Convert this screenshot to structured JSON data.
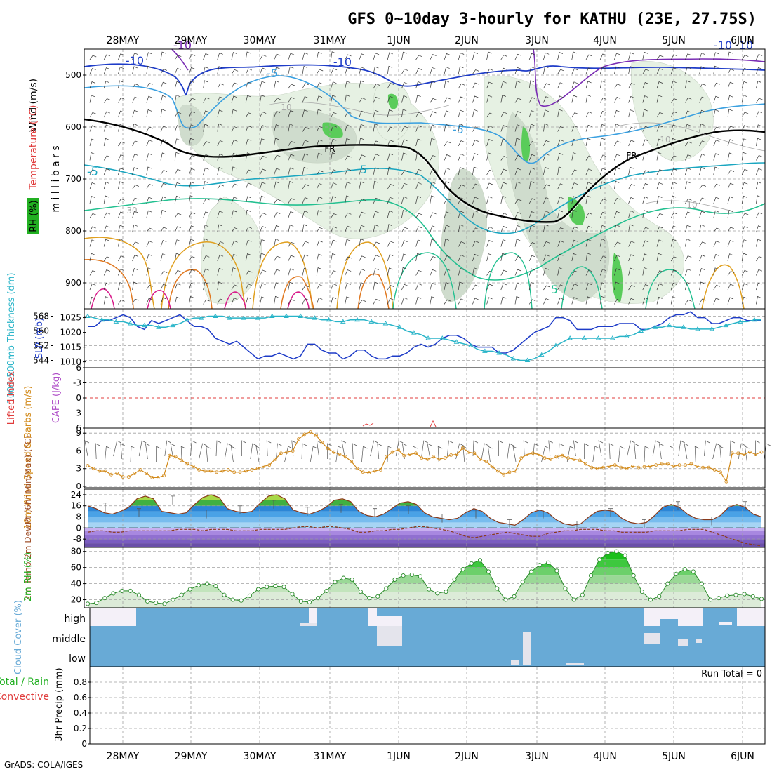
{
  "title": "GFS 0~10day 3-hourly for KATHU (23E, 27.75S)",
  "footer": "GrADS: COLA/IGES",
  "colors": {
    "frame": "#000000",
    "grid": "#a0a0a0",
    "temp_cold": "#7a2db4",
    "wind_label": "#d28a1a",
    "rh_green": "#22b022",
    "slp_blue": "#1e3cc8",
    "thickness_cyan": "#28b4c8",
    "cape_violet": "#b050c8",
    "lifted_red": "#e03c3c",
    "cloud_blue": "#68aad6",
    "cloud_white": "#f4f0f8",
    "precip_green": "#22b022",
    "precip_red": "#e03c3c"
  },
  "chart_data": [
    {
      "panel": "upper-air",
      "type": "contour",
      "ylabel_parts": [
        "RH (%)",
        "Temperature (°C)",
        "Wind (m/s)"
      ],
      "ylabel_units": "m i l l i b a r s",
      "x_dates": [
        "28MAY",
        "29MAY",
        "30MAY",
        "31MAY",
        "1JUN",
        "2JUN",
        "3JUN",
        "4JUN",
        "5JUN",
        "6JUN"
      ],
      "ylim": [
        950,
        450
      ],
      "yticks": [
        500,
        600,
        700,
        800,
        900
      ],
      "contour_labels": [
        "-10",
        "-10",
        "-5",
        "-5",
        "-5",
        "5",
        "5",
        "-10",
        "-10",
        "-10",
        "FR",
        "FR",
        "30",
        "10",
        "10",
        "10"
      ]
    },
    {
      "panel": "thickness-slp",
      "type": "line",
      "ylabel": "1000-500mb Thickness (dm)",
      "ylabel2": "SLP (mb)",
      "y_left_ticks": [
        544,
        552,
        560,
        568
      ],
      "y_right_ticks": [
        1010,
        1015,
        1020,
        1025
      ],
      "series": [
        {
          "name": "SLP (mb)",
          "axis": "right",
          "values": [
            1022,
            1022,
            1024,
            1024,
            1025,
            1026,
            1025,
            1022,
            1021,
            1024,
            1023,
            1024,
            1025,
            1026,
            1024,
            1022,
            1022,
            1021,
            1018,
            1017,
            1016,
            1017,
            1015,
            1013,
            1011,
            1012,
            1012,
            1013,
            1012,
            1011,
            1012,
            1016,
            1016,
            1014,
            1013,
            1013,
            1011,
            1012,
            1014,
            1014,
            1012,
            1011,
            1011,
            1012,
            1012,
            1013,
            1015,
            1016,
            1015,
            1016,
            1018,
            1019,
            1019,
            1018,
            1016,
            1015,
            1015,
            1015,
            1013,
            1013,
            1014,
            1016,
            1018,
            1020,
            1021,
            1022,
            1025,
            1025,
            1024,
            1021,
            1021,
            1021,
            1022,
            1022,
            1022,
            1023,
            1023,
            1023,
            1021,
            1021,
            1022,
            1023,
            1025,
            1026,
            1026,
            1027,
            1025,
            1025,
            1023,
            1023,
            1024,
            1025,
            1025,
            1024,
            1024,
            1024
          ]
        },
        {
          "name": "1000-500mb Thickness (dm)",
          "axis": "left",
          "values": [
            568,
            567,
            566,
            566,
            565,
            565,
            564,
            563,
            563,
            563,
            562,
            562,
            563,
            564,
            566,
            567,
            567,
            568,
            568,
            568,
            567,
            567,
            567,
            567,
            567,
            567,
            568,
            568,
            568,
            568,
            568,
            567,
            567,
            566,
            566,
            565,
            565,
            566,
            566,
            566,
            565,
            564,
            564,
            563,
            562,
            560,
            559,
            558,
            556,
            556,
            556,
            555,
            554,
            553,
            552,
            550,
            549,
            549,
            548,
            547,
            545,
            544,
            544,
            545,
            547,
            549,
            552,
            554,
            556,
            556,
            556,
            556,
            556,
            556,
            556,
            557,
            557,
            558,
            560,
            561,
            562,
            562,
            563,
            562,
            562,
            561,
            561,
            561,
            561,
            562,
            563,
            564,
            565,
            565,
            566,
            566
          ]
        }
      ]
    },
    {
      "panel": "stability",
      "type": "line",
      "ylabel": "Lifted Index",
      "ylabel2": "CAPE (J/kg)",
      "yticks": [
        -6,
        -3,
        0,
        3,
        6
      ],
      "ytick_labels": [
        "6",
        "3",
        "0",
        "-3",
        "-6"
      ],
      "series": [
        {
          "name": "Lifted Index",
          "values": [
            0
          ]
        }
      ]
    },
    {
      "panel": "10m-wind",
      "type": "line",
      "ylabel": "10m Wind Speed & Barbs (m/s)",
      "yticks": [
        0,
        3,
        6,
        9
      ],
      "series": [
        {
          "name": "Speed",
          "values": [
            3.5,
            3,
            2.6,
            2.6,
            2,
            2.2,
            1.6,
            1.6,
            2.2,
            2.8,
            2.2,
            1.5,
            1.5,
            1.8,
            5.2,
            5,
            4.4,
            3.8,
            3.4,
            2.8,
            2.6,
            2.6,
            2.4,
            2.6,
            2.8,
            2.4,
            2.4,
            2.6,
            2.8,
            3,
            3.4,
            3.6,
            4.6,
            5.6,
            5.8,
            6,
            8,
            8.8,
            9.2,
            8.6,
            7.4,
            6.4,
            5.8,
            5.4,
            5,
            4.2,
            3,
            2.4,
            2.3,
            2.6,
            2.8,
            5,
            5.8,
            6.2,
            5.2,
            5.4,
            5.6,
            4.8,
            4.6,
            5,
            4.6,
            4.8,
            5.3,
            5.4,
            6.5,
            5.8,
            5.6,
            4.6,
            4.2,
            3.4,
            2.6,
            2,
            2.4,
            2.6,
            4.8,
            5.4,
            5.6,
            5.4,
            4.8,
            4.6,
            5,
            5.2,
            4.8,
            4.6,
            4.4,
            3.8,
            3.2,
            3,
            3.2,
            3.4,
            3.6,
            3.2,
            3,
            3.4,
            3.2,
            3.3,
            3.4,
            3.6,
            3.8,
            3.8,
            3.4,
            3.6,
            3.6,
            3.8,
            3.4,
            3.2,
            3.2,
            2.8,
            2.4,
            0.8,
            5.6,
            5.6,
            5.4,
            5.8,
            5.4,
            5.8
          ]
        }
      ]
    },
    {
      "panel": "2m-temp",
      "type": "area",
      "ylabel": "2m Temp 2m DewPt (6hr Min/Max) (°C)",
      "yticks": [
        -8,
        0,
        8,
        16,
        24
      ],
      "ylim": [
        -14,
        28
      ],
      "series": [
        {
          "name": "2m Temp",
          "values": [
            16,
            14,
            11,
            10,
            12,
            15,
            21,
            23,
            21,
            12,
            11,
            10,
            11,
            17,
            22,
            24,
            22,
            14,
            12,
            11,
            12,
            18,
            23,
            24,
            21,
            13,
            11,
            10,
            12,
            15,
            20,
            21,
            19,
            12,
            9,
            8,
            10,
            14,
            18,
            19,
            17,
            11,
            8,
            7,
            6,
            7,
            11,
            14,
            12,
            7,
            4,
            3,
            2,
            6,
            11,
            13,
            11,
            6,
            3,
            2,
            3,
            8,
            12,
            13,
            12,
            7,
            4,
            3,
            4,
            9,
            15,
            17,
            15,
            10,
            7,
            6,
            6,
            9,
            15,
            17,
            15,
            10,
            8
          ]
        },
        {
          "name": "2m DewPt",
          "values": [
            -3,
            -2,
            -2,
            -3,
            -3,
            -2,
            -2,
            -2,
            -2,
            -2,
            -2,
            -1,
            -1,
            -1,
            -2,
            -1,
            -1,
            -1,
            -2,
            -2,
            -2,
            -1,
            -1,
            -1,
            -1,
            0,
            1,
            1,
            0,
            1,
            1,
            0,
            -1,
            -3,
            -3,
            -2,
            -2,
            -1,
            -1,
            0,
            1,
            1,
            0,
            -1,
            -2,
            -4,
            -6,
            -7,
            -6,
            -5,
            -4,
            -3,
            -4,
            -5,
            -6,
            -6,
            -4,
            -3,
            -2,
            -2,
            -1,
            -1,
            -1,
            -2,
            -2,
            -3,
            -3,
            -3,
            -3,
            -2,
            -2,
            -2,
            -2,
            -1,
            -1,
            -1,
            -3,
            -5,
            -7,
            -9,
            -11,
            -12,
            -13
          ]
        }
      ]
    },
    {
      "panel": "2m-rh",
      "type": "area",
      "ylabel": "2m RH (%)",
      "yticks": [
        20,
        40,
        60,
        80
      ],
      "ylim": [
        10,
        85
      ],
      "series": [
        {
          "name": "2m RH",
          "values": [
            15,
            16,
            22,
            28,
            31,
            31,
            26,
            18,
            16,
            15,
            20,
            26,
            33,
            38,
            40,
            37,
            26,
            20,
            19,
            25,
            33,
            36,
            37,
            36,
            27,
            18,
            17,
            22,
            31,
            42,
            47,
            45,
            30,
            22,
            24,
            34,
            45,
            50,
            51,
            49,
            33,
            28,
            30,
            45,
            58,
            65,
            69,
            55,
            34,
            20,
            24,
            42,
            55,
            63,
            66,
            56,
            34,
            20,
            26,
            50,
            70,
            78,
            80,
            75,
            50,
            30,
            20,
            24,
            40,
            52,
            58,
            55,
            40,
            20,
            22,
            25,
            26,
            27,
            24,
            21
          ]
        }
      ]
    },
    {
      "panel": "cloud-cover",
      "type": "heatmap",
      "ylabel": "Cloud Cover (%)",
      "rows": [
        "high",
        "middle",
        "low"
      ]
    },
    {
      "panel": "precip",
      "type": "bar",
      "ylabel": "3hr Precip (mm)",
      "ylabel2_parts": [
        "Total / Rain",
        "Convective"
      ],
      "yticks": [
        0,
        0.2,
        0.4,
        0.6,
        0.8
      ],
      "ylim": [
        0,
        1
      ],
      "annotation": "Run Total = 0",
      "series": [
        {
          "name": "Total / Rain",
          "values": [
            0
          ]
        },
        {
          "name": "Convective",
          "values": [
            0
          ]
        }
      ]
    }
  ]
}
